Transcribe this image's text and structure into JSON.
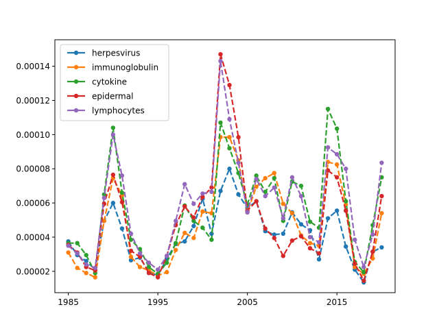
{
  "chart_data": {
    "type": "line",
    "title": "",
    "xlabel": "",
    "ylabel": "",
    "xlim": [
      1983.5,
      2021.5
    ],
    "ylim": [
      7.5e-06,
      0.0001555
    ],
    "xticks": [
      1985,
      1995,
      2005,
      2015
    ],
    "xtick_labels": [
      "1985",
      "1995",
      "2005",
      "2015"
    ],
    "yticks": [
      2e-05,
      4e-05,
      6e-05,
      8e-05,
      0.0001,
      0.00012,
      0.00014
    ],
    "ytick_labels": [
      "0.00002",
      "0.00004",
      "0.00006",
      "0.00008",
      "0.00010",
      "0.00012",
      "0.00014"
    ],
    "legend_position": "top-left",
    "grid": false,
    "x": [
      1985,
      1986,
      1987,
      1988,
      1989,
      1990,
      1991,
      1992,
      1993,
      1994,
      1995,
      1996,
      1997,
      1998,
      1999,
      2000,
      2001,
      2002,
      2003,
      2004,
      2005,
      2006,
      2007,
      2008,
      2009,
      2010,
      2011,
      2012,
      2013,
      2014,
      2015,
      2016,
      2017,
      2018,
      2019,
      2020
    ],
    "series": [
      {
        "name": "herpesvirus",
        "color": "#1f77b4",
        "values": [
          3.75e-05,
          2.95e-05,
          2.6e-05,
          2.1e-05,
          4.95e-05,
          6e-05,
          4.5e-05,
          2.65e-05,
          2.8e-05,
          1.95e-05,
          1.75e-05,
          2.75e-05,
          3.6e-05,
          3.75e-05,
          4.65e-05,
          6.25e-05,
          4.2e-05,
          6.7e-05,
          8e-05,
          6.5e-05,
          5.7e-05,
          6.1e-05,
          4.35e-05,
          4.15e-05,
          4.2e-05,
          5.45e-05,
          4.75e-05,
          4.4e-05,
          2.7e-05,
          5.1e-05,
          5.55e-05,
          3.45e-05,
          2.1e-05,
          1.35e-05,
          3.15e-05,
          3.4e-05
        ]
      },
      {
        "name": "immunoglobulin",
        "color": "#ff7f0e",
        "values": [
          3.1e-05,
          2.2e-05,
          1.9e-05,
          1.65e-05,
          4.95e-05,
          7.45e-05,
          6.45e-05,
          2.85e-05,
          2.25e-05,
          2.05e-05,
          1.75e-05,
          1.95e-05,
          3.25e-05,
          4.25e-05,
          3.95e-05,
          5.5e-05,
          5.4e-05,
          9.85e-05,
          9.85e-05,
          8.5e-05,
          5.45e-05,
          6.95e-05,
          7.45e-05,
          7.75e-05,
          5.95e-05,
          5.4e-05,
          4.1e-05,
          3.65e-05,
          3.5e-05,
          8.4e-05,
          8.25e-05,
          5.9e-05,
          2.25e-05,
          1.85e-05,
          2.75e-05,
          5.4e-05
        ]
      },
      {
        "name": "cytokine",
        "color": "#2ca02c",
        "values": [
          3.65e-05,
          3.65e-05,
          2.95e-05,
          1.9e-05,
          6.5e-05,
          0.000104,
          6.6e-05,
          3.85e-05,
          3.3e-05,
          2.25e-05,
          1.85e-05,
          2.5e-05,
          3.65e-05,
          5.85e-05,
          4.95e-05,
          4.55e-05,
          3.85e-05,
          0.000107,
          9.2e-05,
          7.75e-05,
          5.9e-05,
          7.6e-05,
          6.65e-05,
          7.45e-05,
          4.95e-05,
          7.25e-05,
          7e-05,
          4.9e-05,
          4.55e-05,
          0.000115,
          0.0001035,
          6.1e-05,
          2.55e-05,
          1.95e-05,
          4.7e-05,
          7.5e-05
        ]
      },
      {
        "name": "epidermal",
        "color": "#d62728",
        "values": [
          3.55e-05,
          3.1e-05,
          2.25e-05,
          2.05e-05,
          5.95e-05,
          7.65e-05,
          6.05e-05,
          3.2e-05,
          2.85e-05,
          1.9e-05,
          1.65e-05,
          2.9e-05,
          4.7e-05,
          5.8e-05,
          5.15e-05,
          6.35e-05,
          6.9e-05,
          0.000147,
          0.000129,
          9.85e-05,
          5.55e-05,
          6.1e-05,
          4.5e-05,
          3.95e-05,
          2.9e-05,
          3.8e-05,
          4.05e-05,
          3.35e-05,
          3.05e-05,
          7.9e-05,
          7.5e-05,
          5.55e-05,
          2.45e-05,
          1.45e-05,
          3.15e-05,
          6.4e-05
        ]
      },
      {
        "name": "lymphocytes",
        "color": "#9467bd",
        "values": [
          3.5e-05,
          3.05e-05,
          2.4e-05,
          2.2e-05,
          6.3e-05,
          0.0001,
          7.6e-05,
          4.2e-05,
          3.05e-05,
          2.5e-05,
          2.1e-05,
          2.9e-05,
          4.95e-05,
          7.1e-05,
          5.95e-05,
          6.55e-05,
          6.65e-05,
          0.000143,
          0.000109,
          8.35e-05,
          5.45e-05,
          7.4e-05,
          6.4e-05,
          6.9e-05,
          5.1e-05,
          7.5e-05,
          6.4e-05,
          4e-05,
          3.7e-05,
          9.25e-05,
          8.85e-05,
          8e-05,
          3.85e-05,
          2.25e-05,
          4.15e-05,
          8.35e-05
        ]
      }
    ]
  }
}
